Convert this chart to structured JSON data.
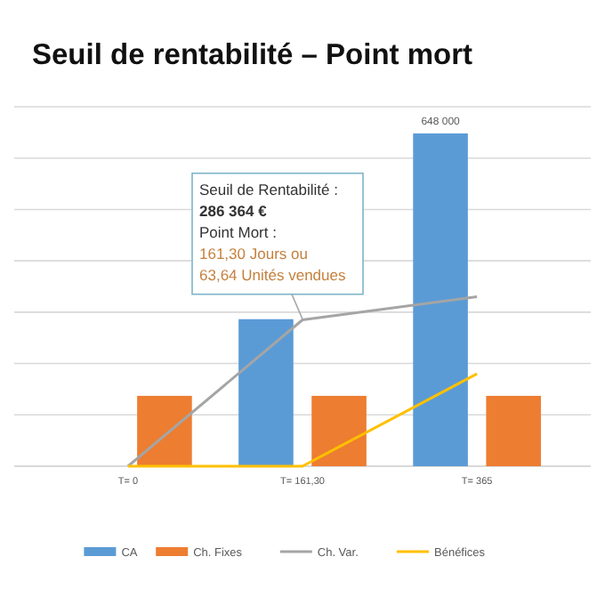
{
  "chart_data": {
    "type": "bar",
    "title": "Seuil de rentabilité – Point mort",
    "categories": [
      "T= 0",
      "T= 161,30",
      "T= 365"
    ],
    "series": [
      {
        "name": "CA",
        "color": "#5b9bd5",
        "values": [
          0,
          286364,
          648000
        ],
        "value_labels": [
          null,
          null,
          "648 000"
        ]
      },
      {
        "name": "Ch. Fixes",
        "color": "#ed7d31",
        "values": [
          137000,
          137000,
          137000
        ]
      },
      {
        "name": "Ch. Var.",
        "type": "line",
        "color": "#a5a5a5",
        "values": [
          0,
          285000,
          330000
        ]
      },
      {
        "name": "Bénéfices",
        "type": "line",
        "color": "#ffc000",
        "values": [
          0,
          0,
          180000
        ]
      }
    ],
    "ylim": [
      0,
      700000
    ],
    "yticks": [
      {
        "value": 0,
        "label": null
      },
      {
        "value": 100000,
        "label": null
      },
      {
        "value": 200000,
        "label": null
      },
      {
        "value": 300000,
        "label": null
      },
      {
        "value": 400000,
        "label": null
      },
      {
        "value": 500000,
        "label": null
      },
      {
        "value": 600000,
        "label": null
      },
      {
        "value": 700000,
        "label": null
      }
    ],
    "tick_labels": "x",
    "grid": "y",
    "legend": "bottom",
    "annotations": [
      {
        "text": "Seuil de Rentabilité :\n286 364 €\nPoint Mort :\n161,30 Jours ou\n63,64 Unités vendues",
        "x": "T= 161,30",
        "y": 286364
      }
    ]
  }
}
